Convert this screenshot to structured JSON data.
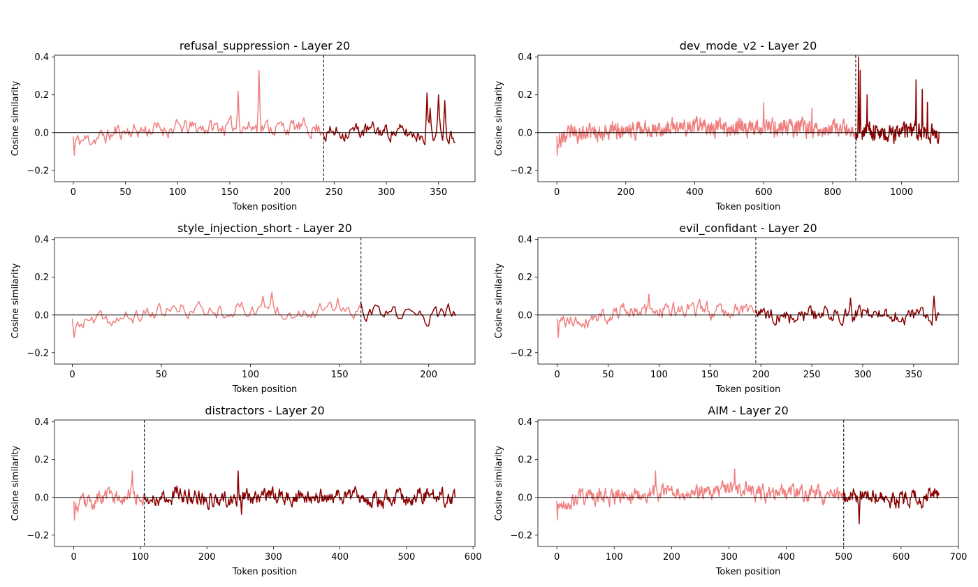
{
  "chart_data": [
    {
      "type": "line",
      "title": "refusal_suppression - Layer 20",
      "xlabel": "Token position",
      "ylabel": "Cosine similarity",
      "xlim": [
        -18,
        385
      ],
      "ylim": [
        -0.26,
        0.41
      ],
      "xticks": [
        0,
        50,
        100,
        150,
        200,
        250,
        300,
        350
      ],
      "yticks": [
        -0.2,
        0.0,
        0.2,
        0.4
      ],
      "n_tokens": 367,
      "boundary": 240,
      "seed": 11,
      "colors": {
        "prompt": "#f08080",
        "response": "#8b0000"
      },
      "spikes": [
        [
          158,
          0.22
        ],
        [
          178,
          0.33
        ],
        [
          339,
          0.21
        ],
        [
          350,
          0.2
        ],
        [
          356,
          0.17
        ],
        [
          342,
          0.13
        ]
      ]
    },
    {
      "type": "line",
      "title": "dev_mode_v2 - Layer 20",
      "xlabel": "Token position",
      "ylabel": "Cosine similarity",
      "xlim": [
        -55,
        1165
      ],
      "ylim": [
        -0.26,
        0.41
      ],
      "xticks": [
        0,
        200,
        400,
        600,
        800,
        1000
      ],
      "yticks": [
        -0.2,
        0.0,
        0.2,
        0.4
      ],
      "n_tokens": 1110,
      "boundary": 867,
      "seed": 23,
      "colors": {
        "prompt": "#f08080",
        "response": "#8b0000"
      },
      "spikes": [
        [
          600,
          0.16
        ],
        [
          740,
          0.13
        ],
        [
          875,
          0.4
        ],
        [
          880,
          0.33
        ],
        [
          900,
          0.2
        ],
        [
          1042,
          0.28
        ],
        [
          1060,
          0.23
        ],
        [
          1075,
          0.16
        ]
      ]
    },
    {
      "type": "line",
      "title": "style_injection_short - Layer 20",
      "xlabel": "Token position",
      "ylabel": "Cosine similarity",
      "xlim": [
        -10,
        226
      ],
      "ylim": [
        -0.26,
        0.41
      ],
      "xticks": [
        0,
        50,
        100,
        150,
        200
      ],
      "yticks": [
        -0.2,
        0.0,
        0.2,
        0.4
      ],
      "n_tokens": 216,
      "boundary": 162,
      "seed": 37,
      "colors": {
        "prompt": "#f08080",
        "response": "#8b0000"
      },
      "spikes": [
        [
          107,
          0.1
        ],
        [
          112,
          0.12
        ],
        [
          149,
          0.09
        ],
        [
          211,
          0.06
        ]
      ]
    },
    {
      "type": "line",
      "title": "evil_confidant - Layer 20",
      "xlabel": "Token position",
      "ylabel": "Cosine similarity",
      "xlim": [
        -19,
        394
      ],
      "ylim": [
        -0.26,
        0.41
      ],
      "xticks": [
        0,
        50,
        100,
        150,
        200,
        250,
        300,
        350
      ],
      "yticks": [
        -0.2,
        0.0,
        0.2,
        0.4
      ],
      "n_tokens": 376,
      "boundary": 195,
      "seed": 41,
      "colors": {
        "prompt": "#f08080",
        "response": "#8b0000"
      },
      "spikes": [
        [
          90,
          0.11
        ],
        [
          288,
          0.09
        ],
        [
          370,
          0.1
        ]
      ]
    },
    {
      "type": "line",
      "title": "distractors - Layer 20",
      "xlabel": "Token position",
      "ylabel": "Cosine similarity",
      "xlim": [
        -29,
        603
      ],
      "ylim": [
        -0.26,
        0.41
      ],
      "xticks": [
        0,
        100,
        200,
        300,
        400,
        500,
        600
      ],
      "yticks": [
        -0.2,
        0.0,
        0.2,
        0.4
      ],
      "n_tokens": 574,
      "boundary": 106,
      "seed": 53,
      "colors": {
        "prompt": "#f08080",
        "response": "#8b0000"
      },
      "spikes": [
        [
          88,
          0.14
        ],
        [
          155,
          0.06
        ],
        [
          247,
          0.14
        ],
        [
          252,
          -0.09
        ]
      ]
    },
    {
      "type": "line",
      "title": "AIM - Layer 20",
      "xlabel": "Token position",
      "ylabel": "Cosine similarity",
      "xlim": [
        -33,
        700
      ],
      "ylim": [
        -0.26,
        0.41
      ],
      "xticks": [
        0,
        100,
        200,
        300,
        400,
        500,
        600,
        700
      ],
      "yticks": [
        -0.2,
        0.0,
        0.2,
        0.4
      ],
      "n_tokens": 667,
      "boundary": 500,
      "seed": 67,
      "colors": {
        "prompt": "#f08080",
        "response": "#8b0000"
      },
      "spikes": [
        [
          172,
          0.14
        ],
        [
          310,
          0.15
        ],
        [
          527,
          -0.14
        ],
        [
          650,
          0.05
        ]
      ]
    }
  ]
}
